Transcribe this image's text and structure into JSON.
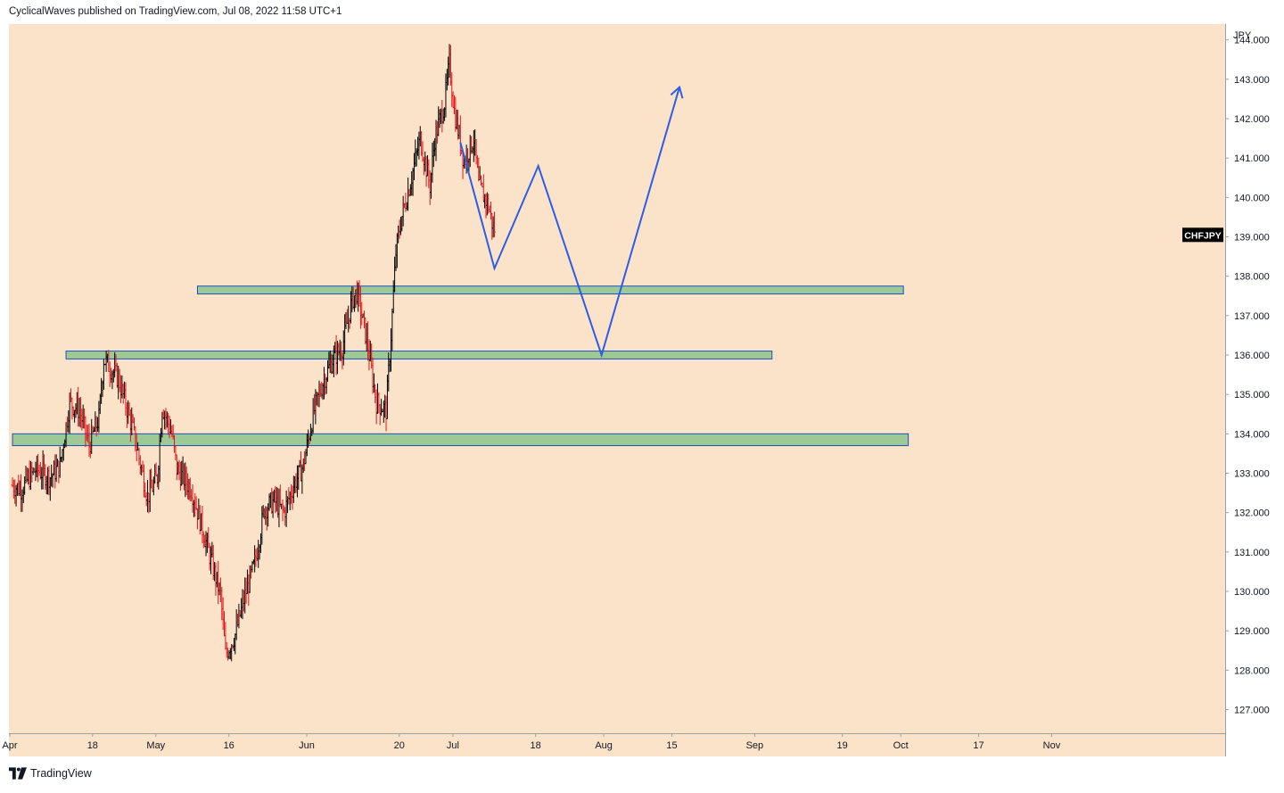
{
  "header": {
    "publisher_text": "CyclicalWaves published on TradingView.com, Jul 08, 2022 11:58 UTC+1"
  },
  "footer": {
    "brand": "TradingView",
    "logo_icon": "tradingview-logo-icon"
  },
  "colors": {
    "chart_bg": "#fbe3c9",
    "candle_up": "#000000",
    "candle_down": "#e3141b",
    "zone_fill": "#9cc994",
    "zone_border": "#1f4dc4",
    "drawing_line": "#2d5ce6",
    "symbol_badge_bg": "#000000",
    "symbol_badge_text": "#ffffff"
  },
  "chart_data": {
    "type": "candlestick",
    "symbol": "CHFJPY",
    "currency_label": "JPY",
    "y_ticks": [
      "144.000",
      "143.000",
      "142.000",
      "141.000",
      "140.000",
      "139.000",
      "138.000",
      "137.000",
      "136.000",
      "135.000",
      "134.000",
      "133.000",
      "132.000",
      "131.000",
      "130.000",
      "129.000",
      "128.000",
      "127.000"
    ],
    "ylim": [
      126.4,
      144.4
    ],
    "x_ticks": [
      {
        "label": "Apr",
        "day": 0
      },
      {
        "label": "18",
        "day": 17
      },
      {
        "label": "May",
        "day": 30
      },
      {
        "label": "16",
        "day": 45
      },
      {
        "label": "Jun",
        "day": 61
      },
      {
        "label": "20",
        "day": 80
      },
      {
        "label": "Jul",
        "day": 91
      },
      {
        "label": "18",
        "day": 108
      },
      {
        "label": "Aug",
        "day": 122
      },
      {
        "label": "15",
        "day": 136
      },
      {
        "label": "Sep",
        "day": 153
      },
      {
        "label": "19",
        "day": 171
      },
      {
        "label": "Oct",
        "day": 183
      },
      {
        "label": "17",
        "day": 199
      },
      {
        "label": "Nov",
        "day": 214
      }
    ],
    "price_path": [
      [
        0,
        132.7
      ],
      [
        2,
        132.6
      ],
      [
        5,
        133.1
      ],
      [
        8,
        132.9
      ],
      [
        10,
        133.2
      ],
      [
        12,
        134.8
      ],
      [
        14,
        134.6
      ],
      [
        16,
        133.7
      ],
      [
        18,
        134.4
      ],
      [
        19,
        135.9
      ],
      [
        22,
        135.4
      ],
      [
        25,
        134.1
      ],
      [
        28,
        132.4
      ],
      [
        30,
        132.9
      ],
      [
        31,
        134.7
      ],
      [
        33,
        134.0
      ],
      [
        34,
        133.1
      ],
      [
        37,
        132.6
      ],
      [
        39,
        131.7
      ],
      [
        41,
        130.8
      ],
      [
        43,
        129.9
      ],
      [
        44,
        128.4
      ],
      [
        46,
        128.9
      ],
      [
        48,
        129.9
      ],
      [
        50,
        130.7
      ],
      [
        52,
        132.1
      ],
      [
        54,
        132.3
      ],
      [
        56,
        132.0
      ],
      [
        58,
        132.7
      ],
      [
        60,
        133.2
      ],
      [
        62,
        134.5
      ],
      [
        64,
        135.3
      ],
      [
        66,
        135.9
      ],
      [
        68,
        136.2
      ],
      [
        70,
        137.4
      ],
      [
        71,
        137.6
      ],
      [
        73,
        136.4
      ],
      [
        75,
        134.8
      ],
      [
        77,
        134.6
      ],
      [
        78,
        136.5
      ],
      [
        79,
        138.6
      ],
      [
        80,
        139.4
      ],
      [
        82,
        140.4
      ],
      [
        84,
        141.5
      ],
      [
        86,
        140.3
      ],
      [
        87,
        141.5
      ],
      [
        89,
        142.4
      ],
      [
        90,
        143.4
      ],
      [
        91,
        142.2
      ],
      [
        93,
        140.9
      ],
      [
        95,
        141.5
      ],
      [
        96,
        140.3
      ],
      [
        98,
        139.8
      ],
      [
        99,
        139.2
      ]
    ],
    "horizontal_zones": [
      {
        "from_day": 38,
        "to_day": 183,
        "low": 137.55,
        "high": 137.75
      },
      {
        "from_day": 11,
        "to_day": 156,
        "low": 135.9,
        "high": 136.1
      },
      {
        "from_day": 0,
        "to_day": 184,
        "low": 133.7,
        "high": 134.0
      }
    ],
    "projection_path": [
      [
        92,
        141.4
      ],
      [
        99,
        138.2
      ],
      [
        108,
        140.8
      ],
      [
        121,
        136.0
      ],
      [
        137,
        142.8
      ]
    ],
    "projection_arrow_tip": [
      137,
      142.8
    ]
  }
}
